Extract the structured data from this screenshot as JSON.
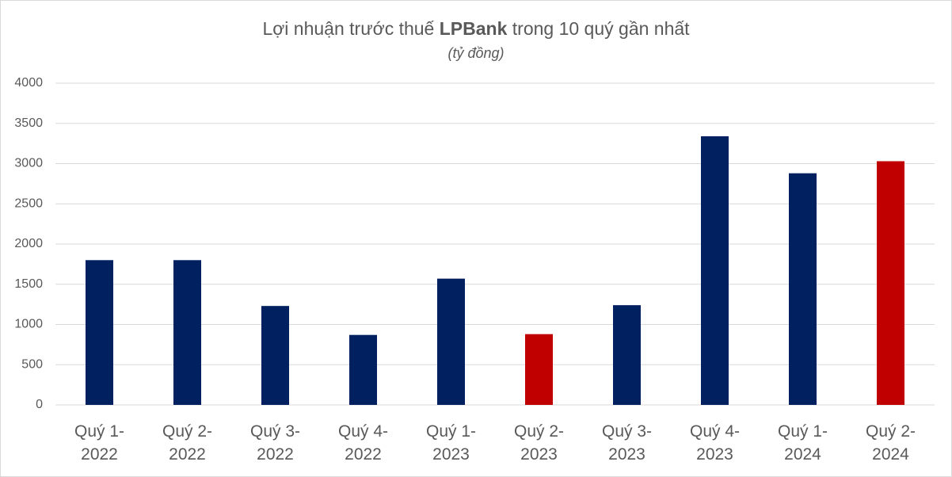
{
  "chart_data": {
    "type": "bar",
    "title": [
      "Lợi nhuận trước thuế ",
      "LPBank",
      " trong 10 quý gần nhất"
    ],
    "subtitle": "(tỷ đồng)",
    "categories": [
      "Quý 1-2022",
      "Quý 2-2022",
      "Quý 3-2022",
      "Quý 4-2022",
      "Quý 1-2023",
      "Quý 2-2023",
      "Quý 3-2023",
      "Quý 4-2023",
      "Quý 1-2024",
      "Quý 2-2024"
    ],
    "values": [
      1800,
      1800,
      1230,
      870,
      1570,
      880,
      1240,
      3340,
      2880,
      3030
    ],
    "colors": [
      "#002060",
      "#002060",
      "#002060",
      "#002060",
      "#002060",
      "#c00000",
      "#002060",
      "#002060",
      "#002060",
      "#c00000"
    ],
    "ylim": [
      0,
      4000
    ],
    "yticks": [
      0,
      500,
      1000,
      1500,
      2000,
      2500,
      3000,
      3500,
      4000
    ],
    "grid": true
  }
}
